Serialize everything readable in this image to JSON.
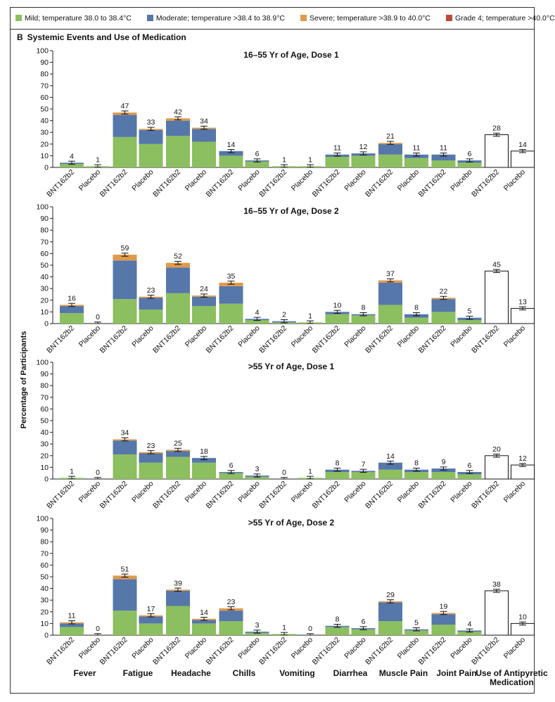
{
  "legend": [
    {
      "label": "Mild; temperature 38.0 to 38.4°C",
      "color": "#8cbf5f"
    },
    {
      "label": "Moderate; temperature >38.4 to 38.9°C",
      "color": "#5577aa"
    },
    {
      "label": "Severe; temperature >38.9 to 40.0°C",
      "color": "#e09a4a"
    },
    {
      "label": "Grade 4; temperature >40.0°C",
      "color": "#b84a3a"
    }
  ],
  "panel": {
    "letter": "B",
    "title": "Systemic Events and Use of Medication"
  },
  "y_axis_label": "Percentage of Participants",
  "chart_data": [
    {
      "type": "bar",
      "title": "16–55 Yr of Age, Dose 1",
      "ylim": [
        0,
        100
      ],
      "yticks": [
        0,
        10,
        20,
        30,
        40,
        50,
        60,
        70,
        80,
        90,
        100
      ],
      "groups": [
        "Fever",
        "Fatigue",
        "Headache",
        "Chills",
        "Vomiting",
        "Diarrhea",
        "Muscle Pain",
        "Joint Pain",
        "Use of Antipyretic Medication"
      ],
      "bar_labels": [
        "BNT162b2",
        "Placebo"
      ],
      "totals": [
        [
          4,
          1
        ],
        [
          47,
          33
        ],
        [
          42,
          34
        ],
        [
          14,
          6
        ],
        [
          1,
          1
        ],
        [
          11,
          12
        ],
        [
          21,
          11
        ],
        [
          11,
          6
        ],
        [
          28,
          14
        ]
      ],
      "stacks": [
        [
          [
            3,
            1,
            0,
            0
          ],
          [
            1,
            0,
            0,
            0
          ]
        ],
        [
          [
            26,
            19,
            2,
            0
          ],
          [
            20,
            12,
            1,
            0
          ]
        ],
        [
          [
            27,
            13,
            2,
            0
          ],
          [
            22,
            11,
            1,
            0
          ]
        ],
        [
          [
            10,
            4,
            0,
            0
          ],
          [
            5,
            1,
            0,
            0
          ]
        ],
        [
          [
            1,
            0,
            0,
            0
          ],
          [
            1,
            0,
            0,
            0
          ]
        ],
        [
          [
            9,
            2,
            0,
            0
          ],
          [
            10,
            2,
            0,
            0
          ]
        ],
        [
          [
            11,
            9,
            1,
            0
          ],
          [
            8,
            3,
            0,
            0
          ]
        ],
        [
          [
            6,
            5,
            0,
            0
          ],
          [
            4,
            2,
            0,
            0
          ]
        ],
        null
      ]
    },
    {
      "type": "bar",
      "title": "16–55 Yr of Age, Dose 2",
      "ylim": [
        0,
        100
      ],
      "yticks": [
        0,
        10,
        20,
        30,
        40,
        50,
        60,
        70,
        80,
        90,
        100
      ],
      "groups": [
        "Fever",
        "Fatigue",
        "Headache",
        "Chills",
        "Vomiting",
        "Diarrhea",
        "Muscle Pain",
        "Joint Pain",
        "Use of Antipyretic Medication"
      ],
      "bar_labels": [
        "BNT162b2",
        "Placebo"
      ],
      "totals": [
        [
          16,
          0
        ],
        [
          59,
          23
        ],
        [
          52,
          24
        ],
        [
          35,
          4
        ],
        [
          2,
          1
        ],
        [
          10,
          8
        ],
        [
          37,
          8
        ],
        [
          22,
          5
        ],
        [
          45,
          13
        ]
      ],
      "stacks": [
        [
          [
            9,
            6,
            1,
            0
          ],
          [
            0,
            0,
            0,
            0
          ]
        ],
        [
          [
            21,
            33,
            5,
            0
          ],
          [
            12,
            10,
            1,
            0
          ]
        ],
        [
          [
            26,
            22,
            4,
            0
          ],
          [
            15,
            8,
            1,
            0
          ]
        ],
        [
          [
            17,
            15,
            3,
            0
          ],
          [
            3,
            1,
            0,
            0
          ]
        ],
        [
          [
            1,
            1,
            0,
            0
          ],
          [
            1,
            0,
            0,
            0
          ]
        ],
        [
          [
            8,
            2,
            0,
            0
          ],
          [
            7,
            1,
            0,
            0
          ]
        ],
        [
          [
            16,
            19,
            2,
            0
          ],
          [
            5,
            3,
            0,
            0
          ]
        ],
        [
          [
            10,
            11,
            1,
            0
          ],
          [
            3,
            2,
            0,
            0
          ]
        ],
        null
      ]
    },
    {
      "type": "bar",
      "title": ">55 Yr of Age, Dose 1",
      "ylim": [
        0,
        100
      ],
      "yticks": [
        0,
        10,
        20,
        30,
        40,
        50,
        60,
        70,
        80,
        90,
        100
      ],
      "groups": [
        "Fever",
        "Fatigue",
        "Headache",
        "Chills",
        "Vomiting",
        "Diarrhea",
        "Muscle Pain",
        "Joint Pain",
        "Use of Antipyretic Medication"
      ],
      "bar_labels": [
        "BNT162b2",
        "Placebo"
      ],
      "totals": [
        [
          1,
          0
        ],
        [
          34,
          23
        ],
        [
          25,
          18
        ],
        [
          6,
          3
        ],
        [
          0,
          1
        ],
        [
          8,
          7
        ],
        [
          14,
          8
        ],
        [
          9,
          6
        ],
        [
          20,
          12
        ]
      ],
      "stacks": [
        [
          [
            1,
            0,
            0,
            0
          ],
          [
            0,
            0,
            0,
            0
          ]
        ],
        [
          [
            21,
            12,
            1,
            0
          ],
          [
            14,
            8,
            1,
            0
          ]
        ],
        [
          [
            19,
            5,
            1,
            0
          ],
          [
            14,
            4,
            0,
            0
          ]
        ],
        [
          [
            5,
            1,
            0,
            0
          ],
          [
            2,
            1,
            0,
            0
          ]
        ],
        [
          [
            0,
            0,
            0,
            0
          ],
          [
            1,
            0,
            0,
            0
          ]
        ],
        [
          [
            6,
            2,
            0,
            0
          ],
          [
            6,
            1,
            0,
            0
          ]
        ],
        [
          [
            8,
            6,
            0,
            0
          ],
          [
            6,
            2,
            0,
            0
          ]
        ],
        [
          [
            6,
            3,
            0,
            0
          ],
          [
            4,
            2,
            0,
            0
          ]
        ],
        null
      ]
    },
    {
      "type": "bar",
      "title": ">55 Yr of Age, Dose 2",
      "ylim": [
        0,
        100
      ],
      "yticks": [
        0,
        10,
        20,
        30,
        40,
        50,
        60,
        70,
        80,
        90,
        100
      ],
      "groups": [
        "Fever",
        "Fatigue",
        "Headache",
        "Chills",
        "Vomiting",
        "Diarrhea",
        "Muscle Pain",
        "Joint Pain",
        "Use of Antipyretic Medication"
      ],
      "bar_labels": [
        "BNT162b2",
        "Placebo"
      ],
      "totals": [
        [
          11,
          0
        ],
        [
          51,
          17
        ],
        [
          39,
          14
        ],
        [
          23,
          3
        ],
        [
          1,
          0
        ],
        [
          8,
          6
        ],
        [
          29,
          5
        ],
        [
          19,
          4
        ],
        [
          38,
          10
        ]
      ],
      "stacks": [
        [
          [
            7,
            3,
            1,
            0
          ],
          [
            0,
            0,
            0,
            0
          ]
        ],
        [
          [
            21,
            27,
            3,
            0
          ],
          [
            10,
            6,
            1,
            0
          ]
        ],
        [
          [
            25,
            13,
            1,
            0
          ],
          [
            10,
            3,
            1,
            0
          ]
        ],
        [
          [
            12,
            9,
            2,
            0
          ],
          [
            2,
            1,
            0,
            0
          ]
        ],
        [
          [
            1,
            0,
            0,
            0
          ],
          [
            0,
            0,
            0,
            0
          ]
        ],
        [
          [
            7,
            1,
            0,
            0
          ],
          [
            5,
            1,
            0,
            0
          ]
        ],
        [
          [
            12,
            16,
            1,
            0
          ],
          [
            4,
            1,
            0,
            0
          ]
        ],
        [
          [
            9,
            9,
            1,
            0
          ],
          [
            3,
            1,
            0,
            0
          ]
        ],
        null
      ]
    }
  ],
  "category_labels": [
    "Fever",
    "Fatigue",
    "Headache",
    "Chills",
    "Vomiting",
    "Diarrhea",
    "Muscle Pain",
    "Joint Pain",
    "Use of Antipyretic Medication"
  ]
}
